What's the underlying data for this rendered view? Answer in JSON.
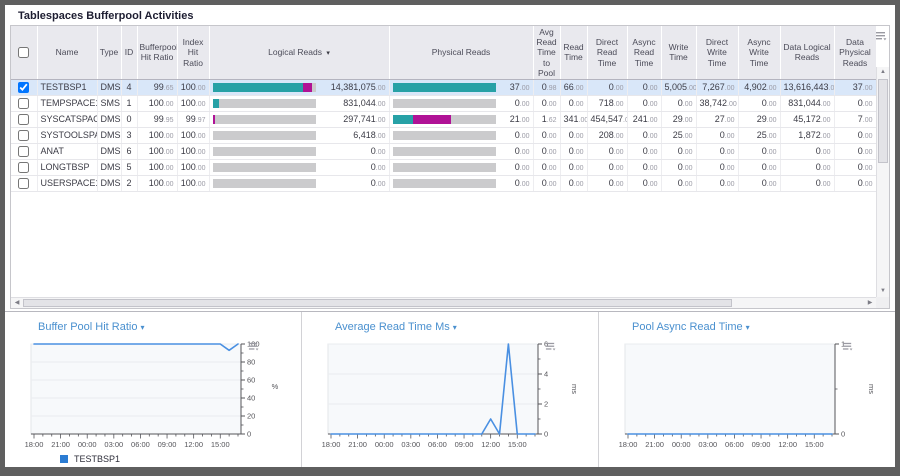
{
  "page": {
    "title": "Tablespaces Bufferpool Activities"
  },
  "ui": {
    "caret": "▾",
    "scroll_up": "▲",
    "scroll_down": "▼",
    "scroll_left": "◀",
    "scroll_right": "▶"
  },
  "table": {
    "columns": [
      "Name",
      "Type",
      "ID",
      "Bufferpool Hit Ratio",
      "Index Hit Ratio",
      "Logical Reads",
      "Physical Reads",
      "Avg Read Time to Pool",
      "Read Time",
      "Direct Read Time",
      "Async Read Time",
      "Write Time",
      "Direct Write Time",
      "Async Write Time",
      "Data Logical Reads",
      "Data Physical Reads"
    ],
    "sorted_column_index": 5,
    "rows": [
      {
        "checked": true,
        "selected": true,
        "name": "TESTBSP1",
        "type": "DMS",
        "id": "4",
        "bp_hit": "99.65",
        "idx_hit": "100.00",
        "logical": {
          "value": "14,381,075.00",
          "teal": 88,
          "magenta": 9
        },
        "physical": {
          "value": "37.00",
          "teal": 100,
          "magenta": 0
        },
        "avg_read_time_to_pool": "0.98",
        "read_time": "66.00",
        "direct_read_time": "0.00",
        "async_read_time": "0.00",
        "write_time": "5,005.00",
        "direct_write_time": "7,267.00",
        "async_write_time": "4,902.00",
        "data_logical_reads": "13,616,443.00",
        "data_physical_reads": "37.00"
      },
      {
        "checked": false,
        "selected": false,
        "name": "TEMPSPACE1",
        "type": "SMS",
        "id": "1",
        "bp_hit": "100.00",
        "idx_hit": "100.00",
        "logical": {
          "value": "831,044.00",
          "teal": 6,
          "magenta": 0
        },
        "physical": {
          "value": "0.00",
          "teal": 0,
          "magenta": 0
        },
        "avg_read_time_to_pool": "0.00",
        "read_time": "0.00",
        "direct_read_time": "718.00",
        "async_read_time": "0.00",
        "write_time": "0.00",
        "direct_write_time": "38,742.00",
        "async_write_time": "0.00",
        "data_logical_reads": "831,044.00",
        "data_physical_reads": "0.00"
      },
      {
        "checked": false,
        "selected": false,
        "name": "SYSCATSPACE",
        "type": "DMS",
        "id": "0",
        "bp_hit": "99.95",
        "idx_hit": "99.97",
        "logical": {
          "value": "297,741.00",
          "teal": 0,
          "magenta": 2
        },
        "physical": {
          "value": "21.00",
          "teal": 20,
          "magenta": 37
        },
        "avg_read_time_to_pool": "1.62",
        "read_time": "341.00",
        "direct_read_time": "454,547.00",
        "async_read_time": "241.00",
        "write_time": "29.00",
        "direct_write_time": "27.00",
        "async_write_time": "29.00",
        "data_logical_reads": "45,172.00",
        "data_physical_reads": "7.00"
      },
      {
        "checked": false,
        "selected": false,
        "name": "SYSTOOLSPACE",
        "type": "DMS",
        "id": "3",
        "bp_hit": "100.00",
        "idx_hit": "100.00",
        "logical": {
          "value": "6,418.00",
          "teal": 0,
          "magenta": 0
        },
        "physical": {
          "value": "0.00",
          "teal": 0,
          "magenta": 0
        },
        "avg_read_time_to_pool": "0.00",
        "read_time": "0.00",
        "direct_read_time": "208.00",
        "async_read_time": "0.00",
        "write_time": "25.00",
        "direct_write_time": "0.00",
        "async_write_time": "25.00",
        "data_logical_reads": "1,872.00",
        "data_physical_reads": "0.00"
      },
      {
        "checked": false,
        "selected": false,
        "name": "ANAT",
        "type": "DMS",
        "id": "6",
        "bp_hit": "100.00",
        "idx_hit": "100.00",
        "logical": {
          "value": "0.00",
          "teal": 0,
          "magenta": 0
        },
        "physical": {
          "value": "0.00",
          "teal": 0,
          "magenta": 0
        },
        "avg_read_time_to_pool": "0.00",
        "read_time": "0.00",
        "direct_read_time": "0.00",
        "async_read_time": "0.00",
        "write_time": "0.00",
        "direct_write_time": "0.00",
        "async_write_time": "0.00",
        "data_logical_reads": "0.00",
        "data_physical_reads": "0.00"
      },
      {
        "checked": false,
        "selected": false,
        "name": "LONGTBSP",
        "type": "DMS",
        "id": "5",
        "bp_hit": "100.00",
        "idx_hit": "100.00",
        "logical": {
          "value": "0.00",
          "teal": 0,
          "magenta": 0
        },
        "physical": {
          "value": "0.00",
          "teal": 0,
          "magenta": 0
        },
        "avg_read_time_to_pool": "0.00",
        "read_time": "0.00",
        "direct_read_time": "0.00",
        "async_read_time": "0.00",
        "write_time": "0.00",
        "direct_write_time": "0.00",
        "async_write_time": "0.00",
        "data_logical_reads": "0.00",
        "data_physical_reads": "0.00"
      },
      {
        "checked": false,
        "selected": false,
        "name": "USERSPACE1",
        "type": "DMS",
        "id": "2",
        "bp_hit": "100.00",
        "idx_hit": "100.00",
        "logical": {
          "value": "0.00",
          "teal": 0,
          "magenta": 0
        },
        "physical": {
          "value": "0.00",
          "teal": 0,
          "magenta": 0
        },
        "avg_read_time_to_pool": "0.00",
        "read_time": "0.00",
        "direct_read_time": "0.00",
        "async_read_time": "0.00",
        "write_time": "0.00",
        "direct_write_time": "0.00",
        "async_write_time": "0.00",
        "data_logical_reads": "0.00",
        "data_physical_reads": "0.00"
      }
    ],
    "colors": {
      "bar_teal": "#27a1a6",
      "bar_magenta": "#b01296",
      "bar_track": "#cbcbcd",
      "selected_row": "#d9e7f9"
    }
  },
  "chart_data": [
    {
      "type": "line",
      "title": "Buffer Pool Hit Ratio",
      "x_major_labels": [
        "18:00",
        "21:00",
        "00:00",
        "03:00",
        "06:00",
        "09:00",
        "12:00",
        "15:00"
      ],
      "series": [
        {
          "name": "TESTBSP1",
          "values": [
            100,
            100,
            100,
            100,
            100,
            100,
            100,
            100,
            100,
            100,
            100,
            100,
            100,
            100,
            100,
            100,
            100,
            100,
            100,
            100,
            100,
            100,
            93,
            100
          ]
        }
      ],
      "ylim": [
        0,
        100
      ],
      "yticks": [
        0,
        20,
        40,
        60,
        80,
        100
      ],
      "ylabel": "%",
      "ylabel_rotated": false,
      "legend": [
        "TESTBSP1"
      ],
      "legend_position": "bottom-left",
      "axis_side": "right",
      "line_color": "#4a90e2"
    },
    {
      "type": "line",
      "title": "Average Read Time Ms",
      "x_major_labels": [
        "18:00",
        "21:00",
        "00:00",
        "03:00",
        "06:00",
        "09:00",
        "12:00",
        "15:00"
      ],
      "series": [
        {
          "name": "TESTBSP1",
          "values": [
            0,
            0,
            0,
            0,
            0,
            0,
            0,
            0,
            0,
            0,
            0,
            0,
            0,
            0,
            0,
            0,
            0,
            0,
            1,
            0,
            6,
            0,
            0,
            0
          ]
        }
      ],
      "ylim": [
        0,
        6
      ],
      "yticks": [
        0,
        2,
        4,
        6
      ],
      "ylabel": "ms",
      "ylabel_rotated": true,
      "legend": [],
      "axis_side": "right",
      "line_color": "#4a90e2"
    },
    {
      "type": "line",
      "title": "Pool Async Read Time",
      "x_major_labels": [
        "18:00",
        "21:00",
        "00:00",
        "03:00",
        "06:00",
        "09:00",
        "12:00",
        "15:00"
      ],
      "series": [
        {
          "name": "TESTBSP1",
          "values": [
            0,
            0,
            0,
            0,
            0,
            0,
            0,
            0,
            0,
            0,
            0,
            0,
            0,
            0,
            0,
            0,
            0,
            0,
            0,
            0,
            0,
            0,
            0,
            0
          ]
        }
      ],
      "ylim": [
        0,
        1
      ],
      "yticks": [
        0,
        1
      ],
      "ylabel": "ms",
      "ylabel_rotated": true,
      "legend": [],
      "axis_side": "right",
      "line_color": "#4a90e2"
    }
  ]
}
